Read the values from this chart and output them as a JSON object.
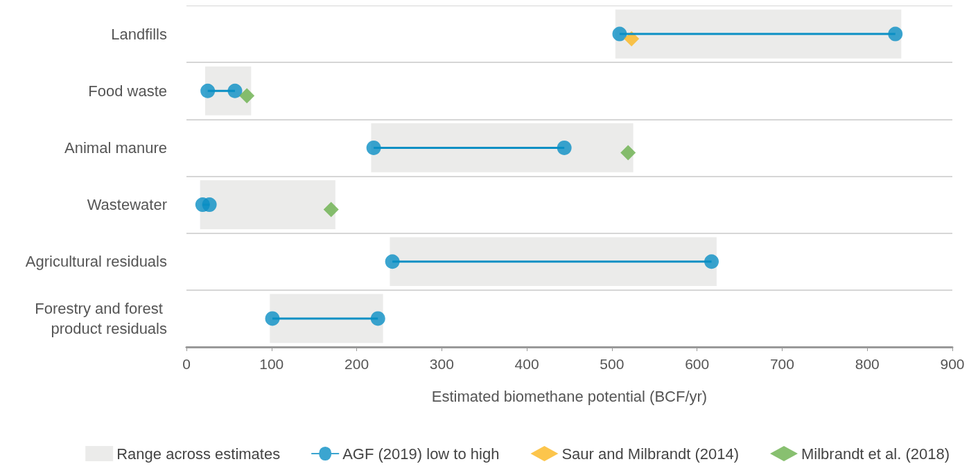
{
  "chart_data": {
    "type": "bar",
    "orientation": "horizontal",
    "xlabel": "Estimated biomethane potential (BCF/yr)",
    "categories": [
      "Landfills",
      "Food waste",
      "Animal manure",
      "Wastewater",
      "Agricultural residuals",
      "Forestry and forest product residuals"
    ],
    "xlim": [
      0,
      900
    ],
    "xticks": [
      0,
      100,
      200,
      300,
      400,
      500,
      600,
      700,
      800,
      900
    ],
    "grid": "y",
    "legend": "bottom",
    "series": [
      {
        "name": "Range across estimates",
        "color": "#ebebea",
        "base": [
          504,
          22,
          217,
          16,
          239,
          98
        ],
        "values": [
          336,
          54,
          308,
          159,
          384,
          133
        ]
      },
      {
        "name": "AGF (2019) low to high",
        "type": "scatter",
        "marker": "circle",
        "color": "#0a8fc4",
        "values": [
          509,
          25,
          220,
          19,
          242,
          101
        ]
      },
      {
        "type": "scatter",
        "marker": "circle",
        "color": "#0a8fc4",
        "values": [
          833,
          57,
          444,
          27,
          617,
          225
        ]
      },
      {
        "color": "#0a8fc4",
        "base": [
          509,
          25,
          220,
          19,
          242,
          101
        ],
        "values": [
          324,
          32,
          224,
          8,
          375,
          124
        ]
      },
      {
        "name": "Saur and Milbrandt (2014)",
        "type": "scatter",
        "marker": "diamond",
        "color": "#fbb61f",
        "values": [
          523,
          null,
          null,
          null,
          null,
          null
        ]
      },
      {
        "name": "Milbrandt et al. (2018)",
        "type": "scatter",
        "marker": "diamond",
        "color": "#6ab04c",
        "values": [
          null,
          71,
          519,
          170,
          null,
          null
        ]
      }
    ]
  }
}
